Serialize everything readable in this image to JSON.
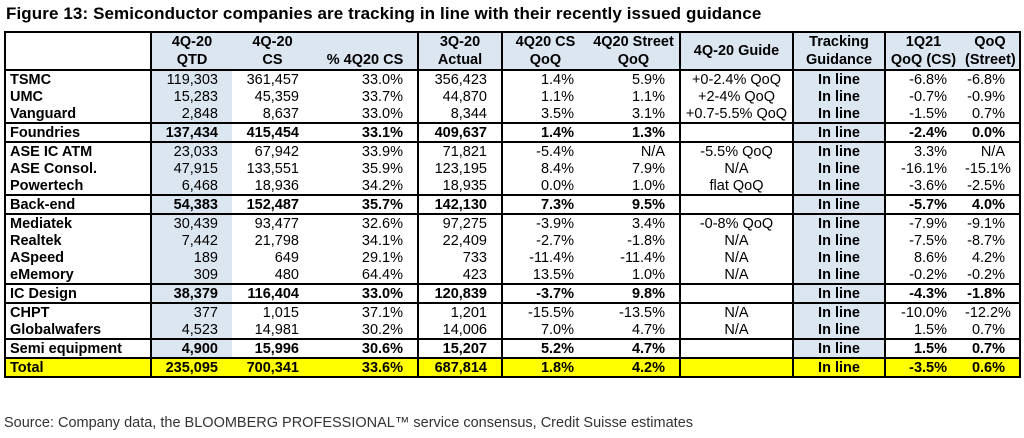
{
  "title": "Figure 13: Semiconductor companies are tracking in line with their recently issued guidance",
  "source": "Source: Company data, the BLOOMBERG PROFESSIONAL™ service consensus, Credit Suisse estimates",
  "headers": {
    "row1": [
      "",
      "4Q-20",
      "4Q-20",
      "",
      "3Q-20",
      "4Q20 CS",
      "4Q20 Street",
      "4Q-20 Guide",
      "Tracking",
      "1Q21",
      "QoQ"
    ],
    "row2": [
      "",
      "QTD",
      "CS",
      "% 4Q20 CS",
      "Actual",
      "QoQ",
      "QoQ",
      "",
      "Guidance",
      "QoQ (CS)",
      "(Street)"
    ]
  },
  "rows": [
    {
      "kind": "item",
      "name": "TSMC",
      "qtd": "119,303",
      "cs": "361,457",
      "pct": "33.0%",
      "actual": "356,423",
      "csqoq": "1.4%",
      "stqoq": "5.9%",
      "guide": "+0-2.4% QoQ",
      "tracking": "In line",
      "q1": "-6.8%",
      "qoqst": "-6.8%"
    },
    {
      "kind": "item",
      "name": "UMC",
      "qtd": "15,283",
      "cs": "45,359",
      "pct": "33.7%",
      "actual": "44,870",
      "csqoq": "1.1%",
      "stqoq": "1.1%",
      "guide": "+2-4% QoQ",
      "tracking": "In line",
      "q1": "-0.7%",
      "qoqst": "-0.9%"
    },
    {
      "kind": "item",
      "name": "Vanguard",
      "qtd": "2,848",
      "cs": "8,637",
      "pct": "33.0%",
      "actual": "8,344",
      "csqoq": "3.5%",
      "stqoq": "3.1%",
      "guide": "+0.7-5.5% QoQ",
      "tracking": "In line",
      "q1": "-1.5%",
      "qoqst": "0.7%"
    },
    {
      "kind": "sub",
      "name": "Foundries",
      "qtd": "137,434",
      "cs": "415,454",
      "pct": "33.1%",
      "actual": "409,637",
      "csqoq": "1.4%",
      "stqoq": "1.3%",
      "guide": "",
      "tracking": "In line",
      "q1": "-2.4%",
      "qoqst": "0.0%"
    },
    {
      "kind": "item",
      "name": "ASE IC ATM",
      "qtd": "23,033",
      "cs": "67,942",
      "pct": "33.9%",
      "actual": "71,821",
      "csqoq": "-5.4%",
      "stqoq": "N/A",
      "guide": "-5.5% QoQ",
      "tracking": "In line",
      "q1": "3.3%",
      "qoqst": "N/A"
    },
    {
      "kind": "item",
      "name": "ASE Consol.",
      "qtd": "47,915",
      "cs": "133,551",
      "pct": "35.9%",
      "actual": "123,195",
      "csqoq": "8.4%",
      "stqoq": "7.9%",
      "guide": "N/A",
      "tracking": "In line",
      "q1": "-16.1%",
      "qoqst": "-15.1%"
    },
    {
      "kind": "item",
      "name": "Powertech",
      "qtd": "6,468",
      "cs": "18,936",
      "pct": "34.2%",
      "actual": "18,935",
      "csqoq": "0.0%",
      "stqoq": "1.0%",
      "guide": "flat QoQ",
      "tracking": "In line",
      "q1": "-3.6%",
      "qoqst": "-2.5%"
    },
    {
      "kind": "sub",
      "name": "Back-end",
      "qtd": "54,383",
      "cs": "152,487",
      "pct": "35.7%",
      "actual": "142,130",
      "csqoq": "7.3%",
      "stqoq": "9.5%",
      "guide": "",
      "tracking": "In line",
      "q1": "-5.7%",
      "qoqst": "4.0%"
    },
    {
      "kind": "item",
      "name": "Mediatek",
      "qtd": "30,439",
      "cs": "93,477",
      "pct": "32.6%",
      "actual": "97,275",
      "csqoq": "-3.9%",
      "stqoq": "3.4%",
      "guide": "-0-8% QoQ",
      "tracking": "In line",
      "q1": "-7.9%",
      "qoqst": "-9.1%"
    },
    {
      "kind": "item",
      "name": "Realtek",
      "qtd": "7,442",
      "cs": "21,798",
      "pct": "34.1%",
      "actual": "22,409",
      "csqoq": "-2.7%",
      "stqoq": "-1.8%",
      "guide": "N/A",
      "tracking": "In line",
      "q1": "-7.5%",
      "qoqst": "-8.7%"
    },
    {
      "kind": "item",
      "name": "ASpeed",
      "qtd": "189",
      "cs": "649",
      "pct": "29.1%",
      "actual": "733",
      "csqoq": "-11.4%",
      "stqoq": "-11.4%",
      "guide": "N/A",
      "tracking": "In line",
      "q1": "8.6%",
      "qoqst": "4.2%"
    },
    {
      "kind": "item",
      "name": "eMemory",
      "qtd": "309",
      "cs": "480",
      "pct": "64.4%",
      "actual": "423",
      "csqoq": "13.5%",
      "stqoq": "1.0%",
      "guide": "N/A",
      "tracking": "In line",
      "q1": "-0.2%",
      "qoqst": "-0.2%"
    },
    {
      "kind": "sub",
      "name": "IC Design",
      "qtd": "38,379",
      "cs": "116,404",
      "pct": "33.0%",
      "actual": "120,839",
      "csqoq": "-3.7%",
      "stqoq": "9.8%",
      "guide": "",
      "tracking": "In line",
      "q1": "-4.3%",
      "qoqst": "-1.8%"
    },
    {
      "kind": "item",
      "name": "CHPT",
      "qtd": "377",
      "cs": "1,015",
      "pct": "37.1%",
      "actual": "1,201",
      "csqoq": "-15.5%",
      "stqoq": "-13.5%",
      "guide": "N/A",
      "tracking": "In line",
      "q1": "-10.0%",
      "qoqst": "-12.2%"
    },
    {
      "kind": "item",
      "name": "Globalwafers",
      "qtd": "4,523",
      "cs": "14,981",
      "pct": "30.2%",
      "actual": "14,006",
      "csqoq": "7.0%",
      "stqoq": "4.7%",
      "guide": "N/A",
      "tracking": "In line",
      "q1": "1.5%",
      "qoqst": "0.7%"
    },
    {
      "kind": "sub",
      "name": "Semi equipment",
      "qtd": "4,900",
      "cs": "15,996",
      "pct": "30.6%",
      "actual": "15,207",
      "csqoq": "5.2%",
      "stqoq": "4.7%",
      "guide": "",
      "tracking": "In line",
      "q1": "1.5%",
      "qoqst": "0.7%"
    },
    {
      "kind": "total",
      "name": "Total",
      "qtd": "235,095",
      "cs": "700,341",
      "pct": "33.6%",
      "actual": "687,814",
      "csqoq": "1.8%",
      "stqoq": "4.2%",
      "guide": "",
      "tracking": "In line",
      "q1": "-3.5%",
      "qoqst": "0.6%"
    }
  ],
  "colors": {
    "header_shade": "#dce6f1",
    "total_highlight": "#ffff00"
  }
}
